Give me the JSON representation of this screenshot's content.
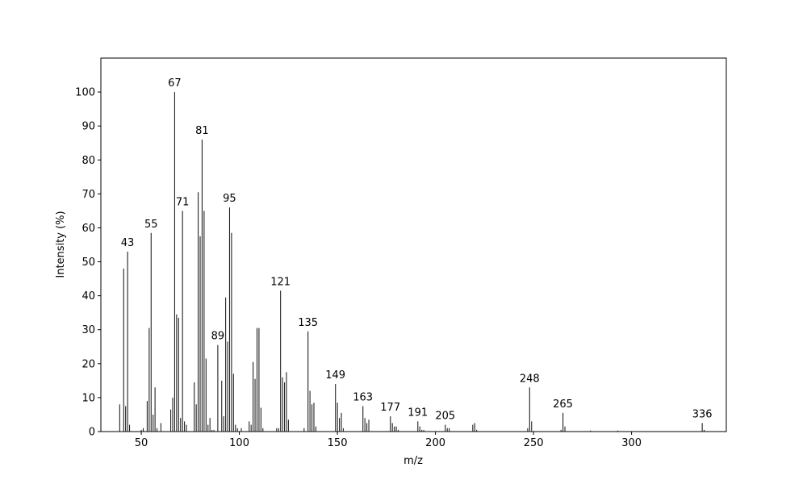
{
  "chart_data": {
    "type": "bar",
    "xlabel": "m/z",
    "ylabel": "Intensity (%)",
    "x": [
      39,
      41,
      42,
      43,
      44,
      50,
      51,
      53,
      54,
      55,
      56,
      57,
      58,
      60,
      65,
      66,
      67,
      68,
      69,
      70,
      71,
      72,
      73,
      77,
      78,
      79,
      80,
      81,
      82,
      83,
      84,
      85,
      86,
      87,
      89,
      91,
      92,
      93,
      94,
      95,
      96,
      97,
      98,
      99,
      101,
      105,
      106,
      107,
      108,
      109,
      110,
      111,
      112,
      119,
      120,
      121,
      122,
      123,
      124,
      125,
      133,
      135,
      136,
      137,
      138,
      139,
      149,
      150,
      151,
      152,
      153,
      163,
      164,
      165,
      166,
      177,
      178,
      179,
      180,
      181,
      191,
      192,
      193,
      194,
      205,
      206,
      207,
      219,
      220,
      221,
      247,
      248,
      249,
      264,
      265,
      266,
      279,
      293,
      336,
      337
    ],
    "values": [
      8,
      48,
      7.5,
      53,
      2,
      0.5,
      1,
      9,
      30.5,
      58.5,
      5,
      13,
      1,
      2.5,
      6.5,
      10,
      100,
      34.5,
      33.5,
      4,
      65,
      3,
      2,
      14.5,
      8,
      70.5,
      57.5,
      86,
      65,
      21.5,
      2,
      4,
      0.5,
      0.5,
      25.5,
      15,
      4.5,
      39.5,
      26.5,
      66,
      58.5,
      17,
      2,
      1,
      1,
      3,
      2,
      20.5,
      15.5,
      30.5,
      30.5,
      7,
      1,
      1,
      1,
      41.5,
      16,
      14.5,
      17.5,
      3.5,
      1,
      29.5,
      12,
      8,
      8.5,
      1.5,
      14,
      8.5,
      4,
      5.5,
      1,
      7.5,
      4,
      2.5,
      3.5,
      4.5,
      2.5,
      1.5,
      1.5,
      0.5,
      3,
      1.5,
      0.5,
      0.5,
      2,
      1,
      1,
      2,
      2.5,
      0.5,
      1,
      13,
      3,
      0.5,
      5.5,
      1.5,
      0.3,
      0.3,
      2.5,
      0.5
    ],
    "peak_labels": [
      null,
      null,
      null,
      "43",
      null,
      null,
      null,
      null,
      null,
      "55",
      null,
      null,
      null,
      null,
      null,
      null,
      "67",
      null,
      null,
      null,
      "71",
      null,
      null,
      null,
      null,
      null,
      null,
      "81",
      null,
      null,
      null,
      null,
      null,
      null,
      "89",
      null,
      null,
      null,
      null,
      "95",
      null,
      null,
      null,
      null,
      null,
      null,
      null,
      null,
      null,
      null,
      null,
      null,
      null,
      null,
      null,
      "121",
      null,
      null,
      null,
      null,
      null,
      "135",
      null,
      null,
      null,
      null,
      "149",
      null,
      null,
      null,
      null,
      "163",
      null,
      null,
      null,
      "177",
      null,
      null,
      null,
      null,
      "191",
      null,
      null,
      null,
      "205",
      null,
      null,
      null,
      null,
      null,
      null,
      "248",
      null,
      null,
      "265",
      null,
      null,
      null,
      "336",
      null
    ],
    "color": "#222222",
    "xlim": [
      29.4,
      348.3
    ],
    "ylim": [
      0,
      110
    ],
    "xticks": [
      50,
      100,
      150,
      200,
      250,
      300
    ],
    "yticks": [
      0,
      10,
      20,
      30,
      40,
      50,
      60,
      70,
      80,
      90,
      100
    ]
  }
}
